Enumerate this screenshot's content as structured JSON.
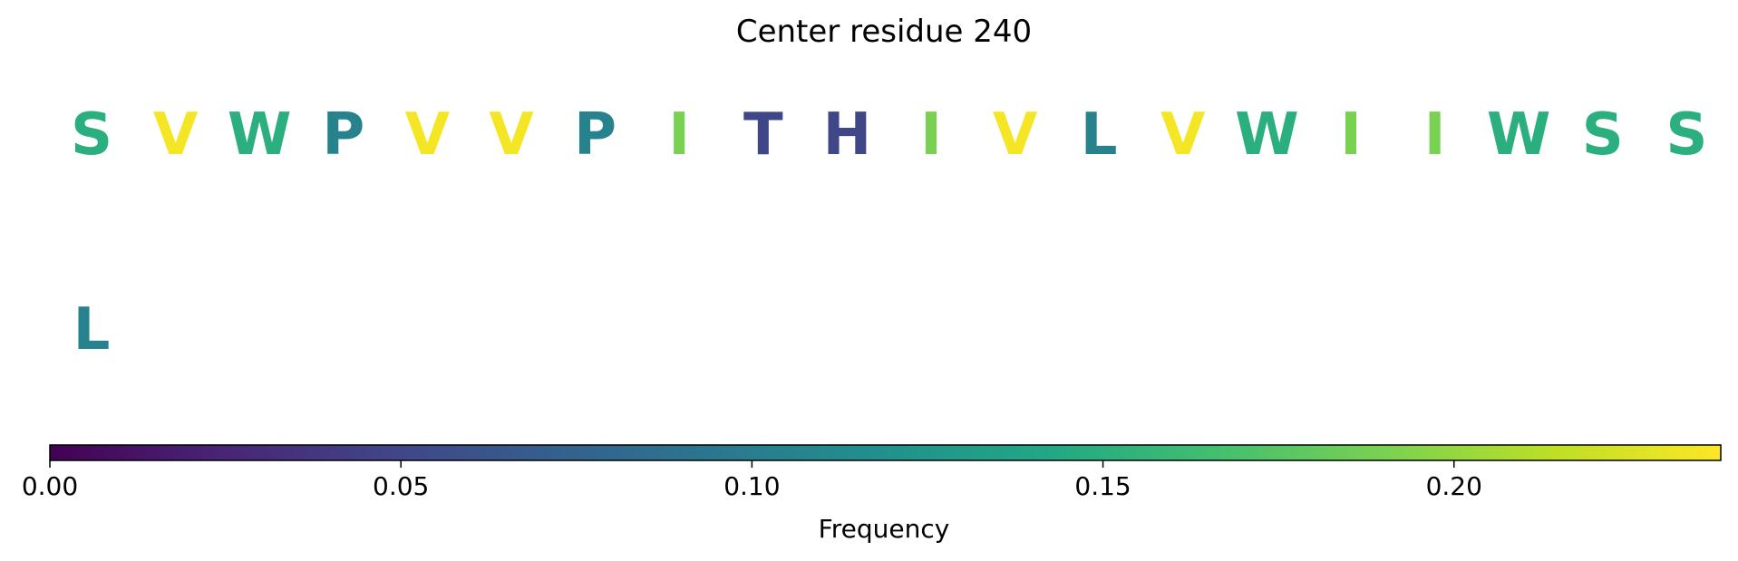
{
  "chart_data": {
    "type": "heatmap",
    "title": "Center residue 240",
    "rows": [
      [
        {
          "residue": "S",
          "freq": 0.15
        },
        {
          "residue": "V",
          "freq": 0.235
        },
        {
          "residue": "W",
          "freq": 0.15
        },
        {
          "residue": "P",
          "freq": 0.105
        },
        {
          "residue": "V",
          "freq": 0.235
        },
        {
          "residue": "V",
          "freq": 0.235
        },
        {
          "residue": "P",
          "freq": 0.105
        },
        {
          "residue": "I",
          "freq": 0.19
        },
        {
          "residue": "T",
          "freq": 0.05
        },
        {
          "residue": "H",
          "freq": 0.05
        },
        {
          "residue": "I",
          "freq": 0.19
        },
        {
          "residue": "V",
          "freq": 0.235
        },
        {
          "residue": "L",
          "freq": 0.105
        },
        {
          "residue": "V",
          "freq": 0.235
        },
        {
          "residue": "W",
          "freq": 0.15
        },
        {
          "residue": "I",
          "freq": 0.19
        },
        {
          "residue": "I",
          "freq": 0.19
        },
        {
          "residue": "W",
          "freq": 0.15
        },
        {
          "residue": "S",
          "freq": 0.15
        },
        {
          "residue": "S",
          "freq": 0.15
        }
      ],
      [
        {
          "residue": "L",
          "freq": 0.105
        }
      ]
    ],
    "colorbar": {
      "colormap": "viridis",
      "range": [
        0,
        0.238
      ],
      "ticks": [
        0.0,
        0.05,
        0.1,
        0.15,
        0.2
      ],
      "tick_labels": [
        "0.00",
        "0.05",
        "0.10",
        "0.15",
        "0.20"
      ],
      "label": "Frequency",
      "orientation": "horizontal",
      "placement": "bottom"
    }
  }
}
